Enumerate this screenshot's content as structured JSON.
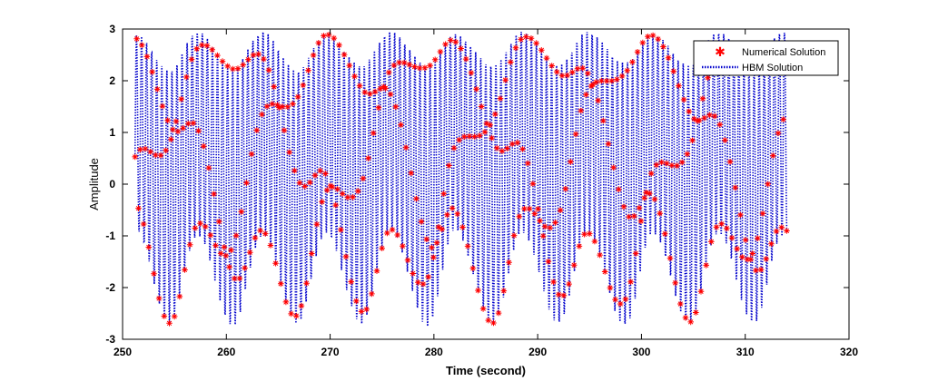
{
  "chart_data": {
    "type": "line",
    "title": "",
    "xlabel": "Time (second)",
    "ylabel": "Amplitude",
    "xlim": [
      250,
      320
    ],
    "ylim": [
      -3,
      3
    ],
    "xticks": [
      "250",
      "260",
      "270",
      "280",
      "290",
      "300",
      "310",
      "320"
    ],
    "yticks": [
      "3",
      "2",
      "1",
      "0",
      "-1",
      "-2",
      "-3"
    ],
    "x_range_of_data": [
      251.2,
      314.0
    ],
    "legend_placement": "top-right",
    "grid": false,
    "series": [
      {
        "name": "Numerical Solution",
        "style": "marker-star",
        "color": "#ff0000"
      },
      {
        "name": "HBM Solution",
        "style": "dotted-line",
        "color": "#0000cc"
      }
    ],
    "peaks": [
      {
        "x": 251.3,
        "max": 2.9,
        "min": -0.9
      },
      {
        "x": 254.5,
        "max": 2.2,
        "min": -2.7
      },
      {
        "x": 257.2,
        "max": 2.95,
        "min": -1.0
      },
      {
        "x": 260.6,
        "max": 2.25,
        "min": -2.75
      },
      {
        "x": 263.5,
        "max": 2.95,
        "min": -1.0
      },
      {
        "x": 266.8,
        "max": 2.2,
        "min": -2.7
      },
      {
        "x": 269.6,
        "max": 2.9,
        "min": -0.95
      },
      {
        "x": 273.0,
        "max": 2.3,
        "min": -2.7
      },
      {
        "x": 275.8,
        "max": 2.95,
        "min": -0.9
      },
      {
        "x": 279.4,
        "max": 2.3,
        "min": -2.75
      },
      {
        "x": 282.0,
        "max": 2.9,
        "min": -0.9
      },
      {
        "x": 285.7,
        "max": 2.3,
        "min": -2.7
      },
      {
        "x": 288.5,
        "max": 2.95,
        "min": -0.95
      },
      {
        "x": 292.0,
        "max": 2.3,
        "min": -2.7
      },
      {
        "x": 294.8,
        "max": 2.95,
        "min": -0.95
      },
      {
        "x": 298.4,
        "max": 2.35,
        "min": -2.75
      },
      {
        "x": 301.1,
        "max": 2.9,
        "min": -0.95
      },
      {
        "x": 304.6,
        "max": 2.3,
        "min": -2.7
      },
      {
        "x": 307.4,
        "max": 2.95,
        "min": -0.95
      },
      {
        "x": 310.8,
        "max": 2.3,
        "min": -2.7
      },
      {
        "x": 313.6,
        "max": 2.95,
        "min": -1.0
      }
    ]
  }
}
